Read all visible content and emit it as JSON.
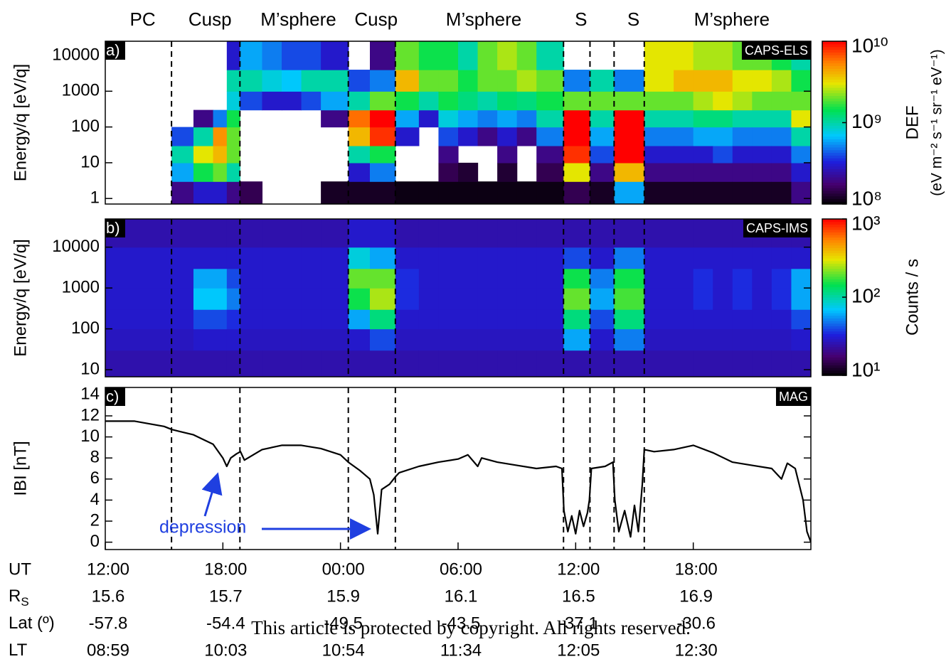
{
  "regions": [
    "PC",
    "Cusp",
    "M’sphere",
    "Cusp",
    "M’sphere",
    "S",
    null,
    "S",
    "M’sphere"
  ],
  "boundaries": [
    3.38,
    6.87,
    12.4,
    14.8,
    23.38,
    24.73,
    25.96,
    27.5
  ],
  "chart_data": [
    {
      "type": "heatmap",
      "panel_label": "a)",
      "instrument": "CAPS-ELS",
      "ylabel": "Energy/q [eV/q]",
      "log_y": true,
      "xlim": [
        0,
        36
      ],
      "ylim": [
        0.7,
        25000
      ],
      "yticks": [
        1,
        10,
        100,
        1000,
        10000
      ],
      "colorbar_label": "DEF",
      "colorbar_units": "(eV m⁻² s⁻¹ sr⁻¹ eV⁻¹)",
      "clim": [
        100000000,
        10000000000
      ],
      "cticks": [
        {
          "value": 10000000000,
          "label": "10¹⁰"
        },
        {
          "value": 1000000000,
          "label": "10⁹"
        },
        {
          "value": 100000000,
          "label": "10⁸"
        }
      ],
      "x_edges": [
        0,
        3.38,
        4.5,
        5.5,
        6.2,
        6.87,
        8,
        9,
        10,
        11,
        12.4,
        13.5,
        14.8,
        16,
        17,
        18,
        19,
        20,
        21,
        22,
        23.38,
        24.73,
        25.96,
        27.5,
        29,
        30,
        31,
        32,
        33,
        34,
        35,
        36
      ],
      "y_edges": [
        0.7,
        3,
        10,
        30,
        100,
        300,
        1000,
        4000,
        25000
      ],
      "z": [
        [
          null,
          null,
          null,
          null,
          null,
          null,
          null,
          null
        ],
        [
          200000000.0,
          600000000.0,
          1000000000.0,
          400000000.0,
          null,
          null,
          null,
          null
        ],
        [
          300000000.0,
          1500000000.0,
          3000000000.0,
          1000000000.0,
          200000000.0,
          null,
          null,
          null
        ],
        [
          300000000.0,
          2000000000.0,
          4000000000.0,
          5000000000.0,
          500000000.0,
          null,
          null,
          null
        ],
        [
          200000000.0,
          1000000000.0,
          2000000000.0,
          2000000000.0,
          1500000000.0,
          800000000.0,
          1000000000.0,
          300000000.0
        ],
        [
          150000000.0,
          null,
          null,
          null,
          null,
          400000000.0,
          1000000000.0,
          600000000.0
        ],
        [
          null,
          null,
          null,
          null,
          null,
          300000000.0,
          800000000.0,
          500000000.0
        ],
        [
          null,
          null,
          null,
          null,
          null,
          300000000.0,
          700000000.0,
          400000000.0
        ],
        [
          null,
          null,
          null,
          null,
          null,
          400000000.0,
          1000000000.0,
          400000000.0
        ],
        [
          120000000.0,
          null,
          null,
          null,
          200000000.0,
          600000000.0,
          1000000000.0,
          300000000.0
        ],
        [
          120000000.0,
          300000000.0,
          1000000000.0,
          4000000000.0,
          6000000000.0,
          1000000000.0,
          400000000.0,
          null
        ],
        [
          120000000.0,
          500000000.0,
          1500000000.0,
          8000000000.0,
          10000000000.0,
          2000000000.0,
          500000000.0,
          200000000.0
        ],
        [
          110000000.0,
          null,
          null,
          300000000.0,
          600000000.0,
          1500000000.0,
          4000000000.0,
          2000000000.0
        ],
        [
          110000000.0,
          null,
          null,
          null,
          300000000.0,
          1000000000.0,
          2000000000.0,
          1500000000.0
        ],
        [
          110000000.0,
          150000000.0,
          200000000.0,
          400000000.0,
          800000000.0,
          1500000000.0,
          2000000000.0,
          1500000000.0
        ],
        [
          110000000.0,
          130000000.0,
          null,
          300000000.0,
          600000000.0,
          1200000000.0,
          1500000000.0,
          1000000000.0
        ],
        [
          110000000.0,
          null,
          null,
          200000000.0,
          500000000.0,
          1000000000.0,
          2000000000.0,
          2000000000.0
        ],
        [
          110000000.0,
          130000000.0,
          200000000.0,
          300000000.0,
          600000000.0,
          1300000000.0,
          2000000000.0,
          2500000000.0
        ],
        [
          110000000.0,
          null,
          null,
          200000000.0,
          500000000.0,
          1200000000.0,
          2500000000.0,
          2000000000.0
        ],
        [
          110000000.0,
          150000000.0,
          200000000.0,
          500000000.0,
          1000000000.0,
          1500000000.0,
          2000000000.0,
          1000000000.0
        ],
        [
          150000000.0,
          3000000000.0,
          8000000000.0,
          10000000000.0,
          10000000000.0,
          2000000000.0,
          500000000.0,
          null
        ],
        [
          120000000.0,
          200000000.0,
          400000000.0,
          600000000.0,
          1000000000.0,
          2000000000.0,
          1000000000.0,
          null
        ],
        [
          600000000.0,
          4000000000.0,
          10000000000.0,
          10000000000.0,
          10000000000.0,
          2000000000.0,
          500000000.0,
          null
        ],
        [
          120000000.0,
          200000000.0,
          300000000.0,
          500000000.0,
          1000000000.0,
          2000000000.0,
          3000000000.0,
          3000000000.0
        ],
        [
          120000000.0,
          200000000.0,
          300000000.0,
          500000000.0,
          1000000000.0,
          2000000000.0,
          4000000000.0,
          3000000000.0
        ],
        [
          120000000.0,
          200000000.0,
          300000000.0,
          600000000.0,
          1200000000.0,
          2500000000.0,
          4000000000.0,
          2500000000.0
        ],
        [
          120000000.0,
          200000000.0,
          400000000.0,
          600000000.0,
          1200000000.0,
          3000000000.0,
          4000000000.0,
          2500000000.0
        ],
        [
          120000000.0,
          200000000.0,
          300000000.0,
          500000000.0,
          1000000000.0,
          2500000000.0,
          3000000000.0,
          2000000000.0
        ],
        [
          120000000.0,
          200000000.0,
          300000000.0,
          500000000.0,
          1000000000.0,
          2000000000.0,
          3000000000.0,
          2000000000.0
        ],
        [
          120000000.0,
          200000000.0,
          300000000.0,
          500000000.0,
          1000000000.0,
          2000000000.0,
          2500000000.0,
          1500000000.0
        ],
        [
          200000000.0,
          300000000.0,
          500000000.0,
          1000000000.0,
          3000000000.0,
          2000000000.0,
          1500000000.0,
          1000000000.0
        ]
      ]
    },
    {
      "type": "heatmap",
      "panel_label": "b)",
      "instrument": "CAPS-IMS",
      "ylabel": "Energy/q [eV/q]",
      "log_y": true,
      "xlim": [
        0,
        36
      ],
      "ylim": [
        6.7,
        49000
      ],
      "yticks": [
        10,
        100,
        1000,
        10000
      ],
      "colorbar_label": "Counts / s",
      "clim": [
        10,
        1000
      ],
      "cticks": [
        {
          "value": 1000,
          "label": "10³"
        },
        {
          "value": 100,
          "label": "10²"
        },
        {
          "value": 10,
          "label": "10¹"
        }
      ],
      "x_edges": [
        0,
        3.38,
        4.5,
        5.5,
        6.2,
        6.87,
        8,
        9,
        10,
        11,
        12.4,
        13.5,
        14.8,
        16,
        17,
        18,
        19,
        20,
        21,
        22,
        23.38,
        24.73,
        25.96,
        27.5,
        29,
        30,
        31,
        32,
        33,
        34,
        35,
        36
      ],
      "y_edges": [
        6.7,
        30,
        100,
        300,
        1000,
        3000,
        10000,
        49000
      ],
      "z": [
        [
          25,
          28,
          30,
          30,
          30,
          30,
          25
        ],
        [
          25,
          28,
          30,
          30,
          30,
          30,
          25
        ],
        [
          25,
          30,
          40,
          70,
          60,
          30,
          25
        ],
        [
          25,
          30,
          40,
          70,
          60,
          30,
          25
        ],
        [
          25,
          30,
          35,
          50,
          40,
          30,
          25
        ],
        [
          25,
          28,
          30,
          30,
          30,
          30,
          25
        ],
        [
          25,
          28,
          30,
          30,
          30,
          30,
          25
        ],
        [
          25,
          28,
          30,
          30,
          30,
          30,
          25
        ],
        [
          25,
          28,
          30,
          30,
          30,
          30,
          25
        ],
        [
          25,
          28,
          30,
          30,
          30,
          30,
          25
        ],
        [
          25,
          30,
          60,
          150,
          200,
          80,
          30
        ],
        [
          25,
          40,
          120,
          250,
          200,
          60,
          30
        ],
        [
          25,
          28,
          30,
          35,
          35,
          30,
          25
        ],
        [
          25,
          28,
          30,
          30,
          30,
          30,
          25
        ],
        [
          25,
          28,
          30,
          30,
          30,
          30,
          25
        ],
        [
          25,
          28,
          30,
          30,
          30,
          30,
          25
        ],
        [
          25,
          28,
          30,
          30,
          30,
          30,
          25
        ],
        [
          25,
          28,
          30,
          30,
          30,
          30,
          25
        ],
        [
          25,
          28,
          30,
          30,
          30,
          30,
          25
        ],
        [
          25,
          28,
          30,
          30,
          30,
          30,
          25
        ],
        [
          25,
          60,
          120,
          200,
          150,
          40,
          25
        ],
        [
          25,
          30,
          40,
          60,
          50,
          30,
          25
        ],
        [
          25,
          50,
          120,
          180,
          150,
          50,
          25
        ],
        [
          25,
          28,
          30,
          30,
          30,
          30,
          25
        ],
        [
          25,
          28,
          30,
          30,
          30,
          30,
          25
        ],
        [
          25,
          28,
          30,
          35,
          35,
          30,
          25
        ],
        [
          25,
          28,
          30,
          30,
          30,
          30,
          25
        ],
        [
          25,
          28,
          30,
          35,
          35,
          30,
          25
        ],
        [
          25,
          28,
          30,
          30,
          30,
          30,
          25
        ],
        [
          25,
          28,
          30,
          35,
          35,
          30,
          25
        ],
        [
          25,
          30,
          40,
          60,
          60,
          30,
          25
        ]
      ]
    },
    {
      "type": "line",
      "panel_label": "c)",
      "instrument": "MAG",
      "ylabel": "IBI [nT]",
      "xlim": [
        0,
        36
      ],
      "ylim": [
        -0.7,
        14.7
      ],
      "yticks": [
        0,
        2,
        4,
        6,
        8,
        10,
        12,
        14
      ],
      "xticks": [
        {
          "value": 0,
          "label": "12:00"
        },
        {
          "value": 6,
          "label": "18:00"
        },
        {
          "value": 12,
          "label": "00:00"
        },
        {
          "value": 18,
          "label": "06:00"
        },
        {
          "value": 24,
          "label": "12:00"
        },
        {
          "value": 30,
          "label": "18:00"
        }
      ],
      "color": "#000000",
      "annotation": "depression",
      "x": [
        0,
        1.5,
        3,
        3.4,
        4.5,
        5.5,
        6.0,
        6.2,
        6.4,
        6.7,
        6.9,
        7.1,
        8,
        9,
        10,
        11,
        12,
        12.4,
        13,
        13.5,
        13.7,
        13.9,
        14.1,
        14.5,
        14.8,
        15,
        16,
        17,
        18,
        18.5,
        19,
        19.2,
        20,
        21,
        22,
        23,
        23.3,
        23.4,
        23.6,
        23.8,
        24.0,
        24.2,
        24.4,
        24.6,
        24.7,
        24.8,
        25.5,
        25.9,
        26.0,
        26.2,
        26.5,
        26.8,
        27.0,
        27.2,
        27.4,
        27.5,
        28,
        29,
        30,
        31,
        32,
        33,
        34,
        34.5,
        34.8,
        35.2,
        35.6,
        35.8,
        36
      ],
      "values": [
        11.5,
        11.5,
        11.0,
        10.7,
        10.2,
        9.3,
        8.0,
        7.2,
        8.0,
        8.4,
        8.6,
        7.8,
        8.8,
        9.2,
        9.2,
        8.9,
        8.3,
        7.6,
        6.8,
        6.0,
        4.5,
        0.8,
        5.0,
        5.5,
        6.2,
        6.6,
        7.2,
        7.6,
        7.9,
        8.3,
        7.2,
        8.0,
        7.6,
        7.3,
        7.0,
        7.2,
        7.0,
        3.0,
        1.0,
        2.5,
        0.8,
        3.0,
        1.5,
        2.8,
        4.0,
        7.0,
        7.2,
        7.6,
        4.0,
        1.0,
        3.0,
        0.5,
        3.5,
        1.0,
        5.5,
        8.8,
        8.6,
        8.8,
        9.2,
        8.5,
        7.6,
        7.3,
        7.0,
        6.0,
        7.5,
        7.0,
        4.0,
        1.0,
        0
      ]
    }
  ],
  "ephemeris": {
    "ut_label": "UT",
    "rows": [
      {
        "label": "R",
        "sub": "S",
        "values": [
          15.6,
          15.7,
          15.9,
          16.1,
          16.5,
          16.9
        ]
      },
      {
        "label": "Lat (º)",
        "values": [
          -57.8,
          -54.4,
          -49.5,
          -43.5,
          -37.1,
          -30.6
        ]
      },
      {
        "label": "LT",
        "values": [
          "08:59",
          "10:03",
          "10:54",
          "11:34",
          "12:05",
          "12:30"
        ]
      }
    ]
  },
  "notice": "This article is protected by copyright. All rights reserved."
}
